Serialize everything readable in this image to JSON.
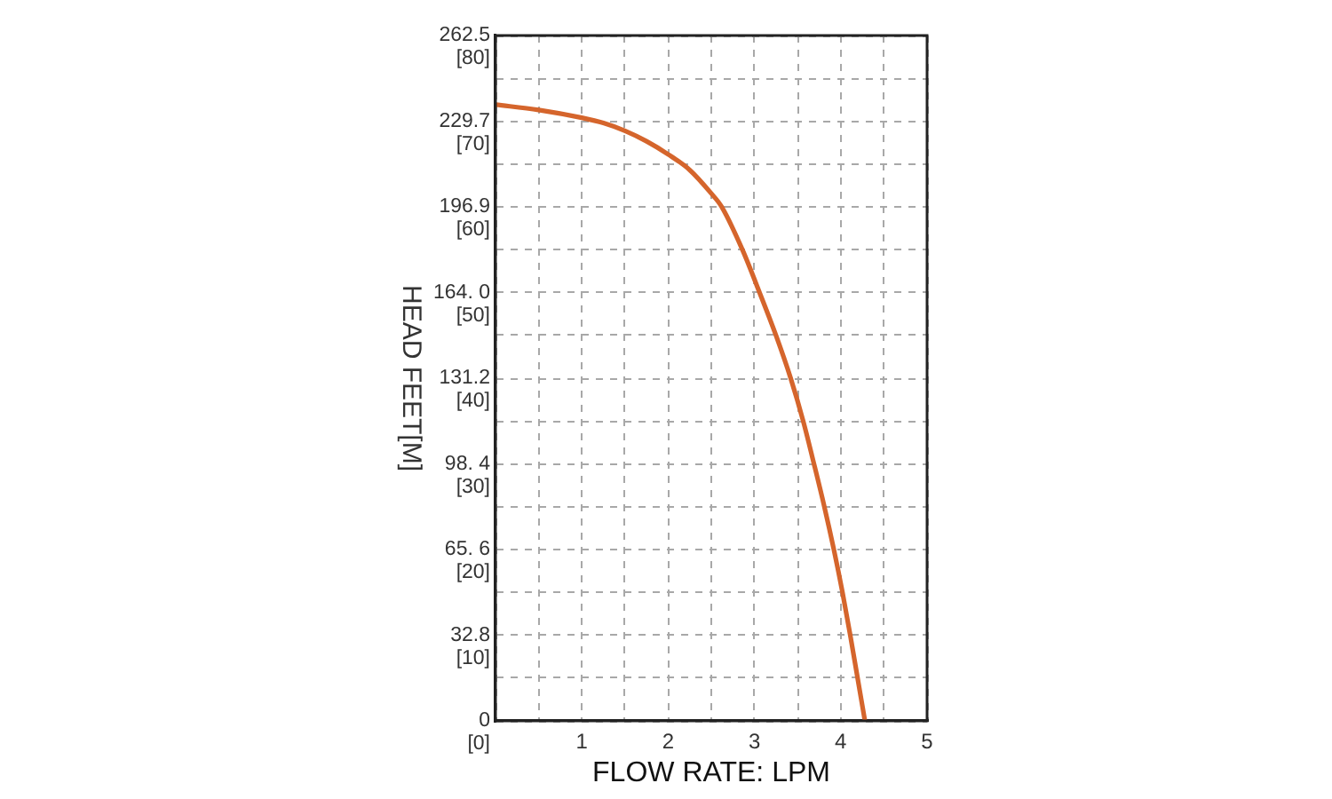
{
  "chart_data": {
    "type": "line",
    "xlabel": "FLOW RATE: LPM",
    "ylabel": "HEAD FEET[M]",
    "x": [
      0,
      0.5,
      1,
      1.25,
      1.5,
      1.75,
      2,
      2.25,
      2.5,
      2.62,
      2.86,
      3.06,
      3.25,
      3.42,
      3.565,
      3.69,
      3.81,
      3.92,
      4.02,
      4.11,
      4.195,
      4.28
    ],
    "series": [
      {
        "color": "#d5652c",
        "values": [
          236,
          234,
          231,
          229,
          226,
          222,
          217,
          211,
          202,
          196.9,
          180.5,
          164.0,
          147.6,
          131.2,
          114.8,
          98.4,
          82.0,
          65.6,
          49.2,
          32.8,
          16.4,
          0
        ]
      }
    ],
    "xlim": [
      0,
      5
    ],
    "xticks": [
      {
        "value": 0,
        "label": null
      },
      {
        "value": 0.5,
        "label": null
      },
      1,
      {
        "value": 1.5,
        "label": null
      },
      2,
      {
        "value": 2.5,
        "label": null
      },
      3,
      {
        "value": 3.5,
        "label": null
      },
      4,
      {
        "value": 4.5,
        "label": null
      },
      5
    ],
    "ylim": [
      0,
      262.5
    ],
    "yticks": [
      0,
      {
        "value": 16.4,
        "label": null
      },
      32.8,
      {
        "value": 49.2,
        "label": null
      },
      {
        "value": 65.6,
        "label": "65. 6"
      },
      {
        "value": 82.0,
        "label": null
      },
      {
        "value": 98.4,
        "label": "98. 4"
      },
      {
        "value": 114.8,
        "label": null
      },
      131.2,
      {
        "value": 147.6,
        "label": null
      },
      {
        "value": 164.0,
        "label": "164. 0"
      },
      {
        "value": 180.5,
        "label": null
      },
      196.9,
      {
        "value": 213.3,
        "label": null
      },
      229.7,
      {
        "value": 246.1,
        "label": null
      },
      262.5
    ],
    "y2lim": [
      0,
      80
    ],
    "y2ticks": [
      {
        "value": 0,
        "label": "[0]"
      },
      {
        "value": 10,
        "label": "[10]"
      },
      {
        "value": 20,
        "label": "[20]"
      },
      {
        "value": 30,
        "label": "[30]"
      },
      {
        "value": 40,
        "label": "[40]"
      },
      {
        "value": 50,
        "label": "[50]"
      },
      {
        "value": 60,
        "label": "[60]"
      },
      {
        "value": 70,
        "label": "[70]"
      },
      {
        "value": 80,
        "label": "[80]"
      }
    ],
    "grid": true,
    "marker": "none"
  }
}
